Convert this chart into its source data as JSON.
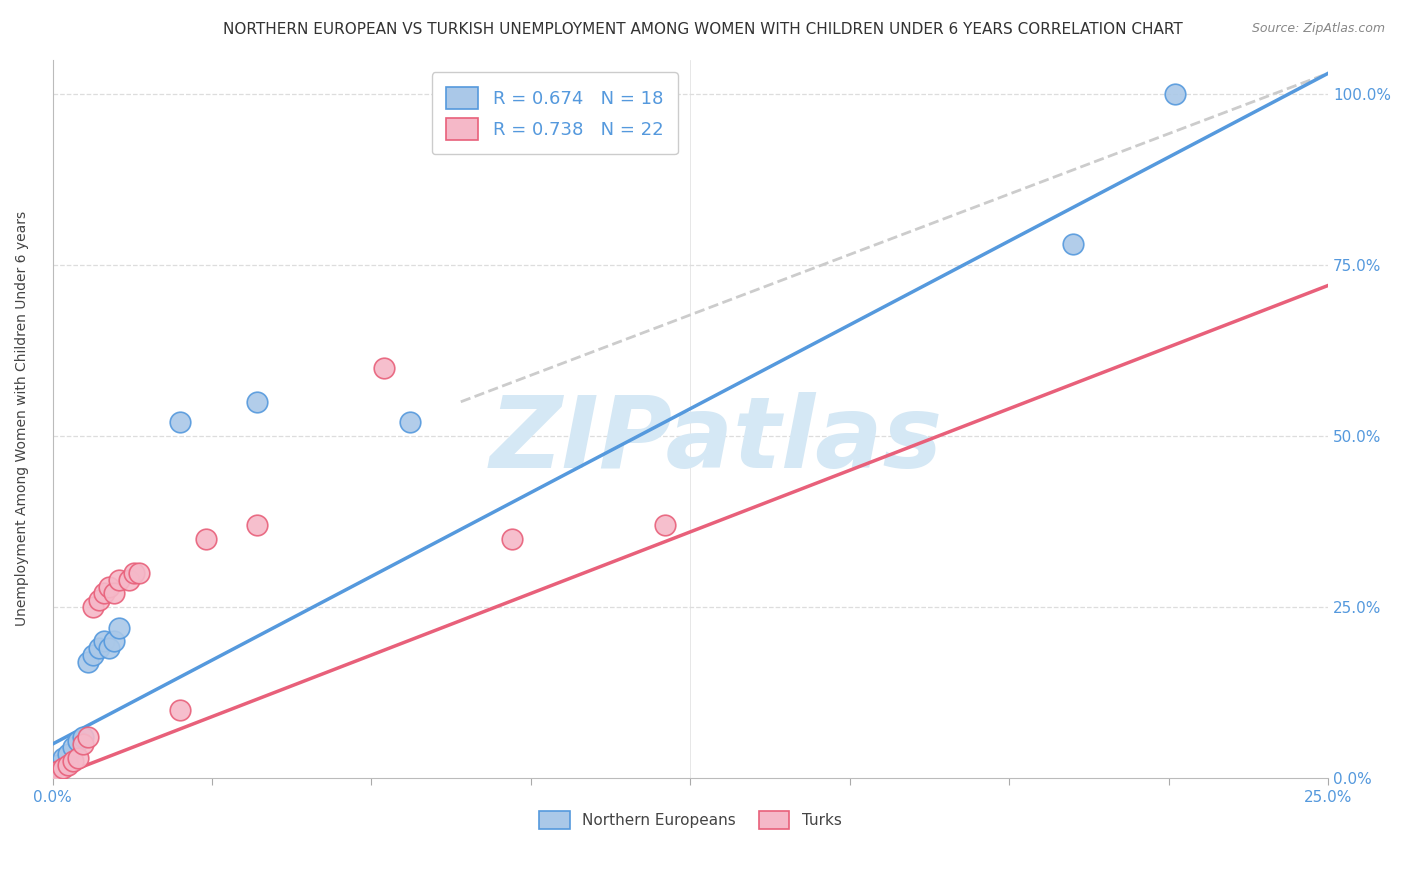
{
  "title": "NORTHERN EUROPEAN VS TURKISH UNEMPLOYMENT AMONG WOMEN WITH CHILDREN UNDER 6 YEARS CORRELATION CHART",
  "source": "Source: ZipAtlas.com",
  "ylabel": "Unemployment Among Women with Children Under 6 years",
  "ylabel_right_ticks": [
    "0.0%",
    "25.0%",
    "50.0%",
    "75.0%",
    "100.0%"
  ],
  "ylabel_right_values": [
    0.0,
    0.25,
    0.5,
    0.75,
    1.0
  ],
  "xlim": [
    0.0,
    0.25
  ],
  "ylim": [
    0.0,
    1.05
  ],
  "legend_blue_R": "R = 0.674",
  "legend_blue_N": "N = 18",
  "legend_pink_R": "R = 0.738",
  "legend_pink_N": "N = 22",
  "blue_color": "#aac8e8",
  "pink_color": "#f5b8c8",
  "blue_line_color": "#5599dd",
  "pink_line_color": "#e8607a",
  "dashed_line_color": "#cccccc",
  "blue_scatter_x": [
    0.001,
    0.002,
    0.003,
    0.004,
    0.005,
    0.006,
    0.007,
    0.008,
    0.009,
    0.01,
    0.011,
    0.012,
    0.013,
    0.025,
    0.04,
    0.07,
    0.2,
    0.22
  ],
  "blue_scatter_y": [
    0.02,
    0.03,
    0.035,
    0.045,
    0.055,
    0.06,
    0.17,
    0.18,
    0.19,
    0.2,
    0.19,
    0.2,
    0.22,
    0.52,
    0.55,
    0.52,
    0.78,
    1.0
  ],
  "pink_scatter_x": [
    0.001,
    0.002,
    0.003,
    0.004,
    0.005,
    0.006,
    0.007,
    0.008,
    0.009,
    0.01,
    0.011,
    0.012,
    0.013,
    0.015,
    0.016,
    0.017,
    0.025,
    0.03,
    0.04,
    0.065,
    0.09,
    0.12
  ],
  "pink_scatter_y": [
    0.01,
    0.015,
    0.02,
    0.025,
    0.03,
    0.05,
    0.06,
    0.25,
    0.26,
    0.27,
    0.28,
    0.27,
    0.29,
    0.29,
    0.3,
    0.3,
    0.1,
    0.35,
    0.37,
    0.6,
    0.35,
    0.37
  ],
  "blue_line_x0": 0.0,
  "blue_line_y0": 0.05,
  "blue_line_x1": 0.25,
  "blue_line_y1": 1.03,
  "pink_line_x0": 0.0,
  "pink_line_y0": 0.0,
  "pink_line_x1": 0.25,
  "pink_line_y1": 0.72,
  "diag_line_x0": 0.08,
  "diag_line_y0": 0.55,
  "diag_line_x1": 0.25,
  "diag_line_y1": 1.03,
  "watermark_text": "ZIPatlas",
  "watermark_color": "#d5e8f5",
  "grid_color": "#dddddd",
  "background_color": "#ffffff",
  "title_fontsize": 11,
  "axis_label_fontsize": 10,
  "tick_fontsize": 11,
  "legend_fontsize": 13,
  "scatter_size": 220
}
